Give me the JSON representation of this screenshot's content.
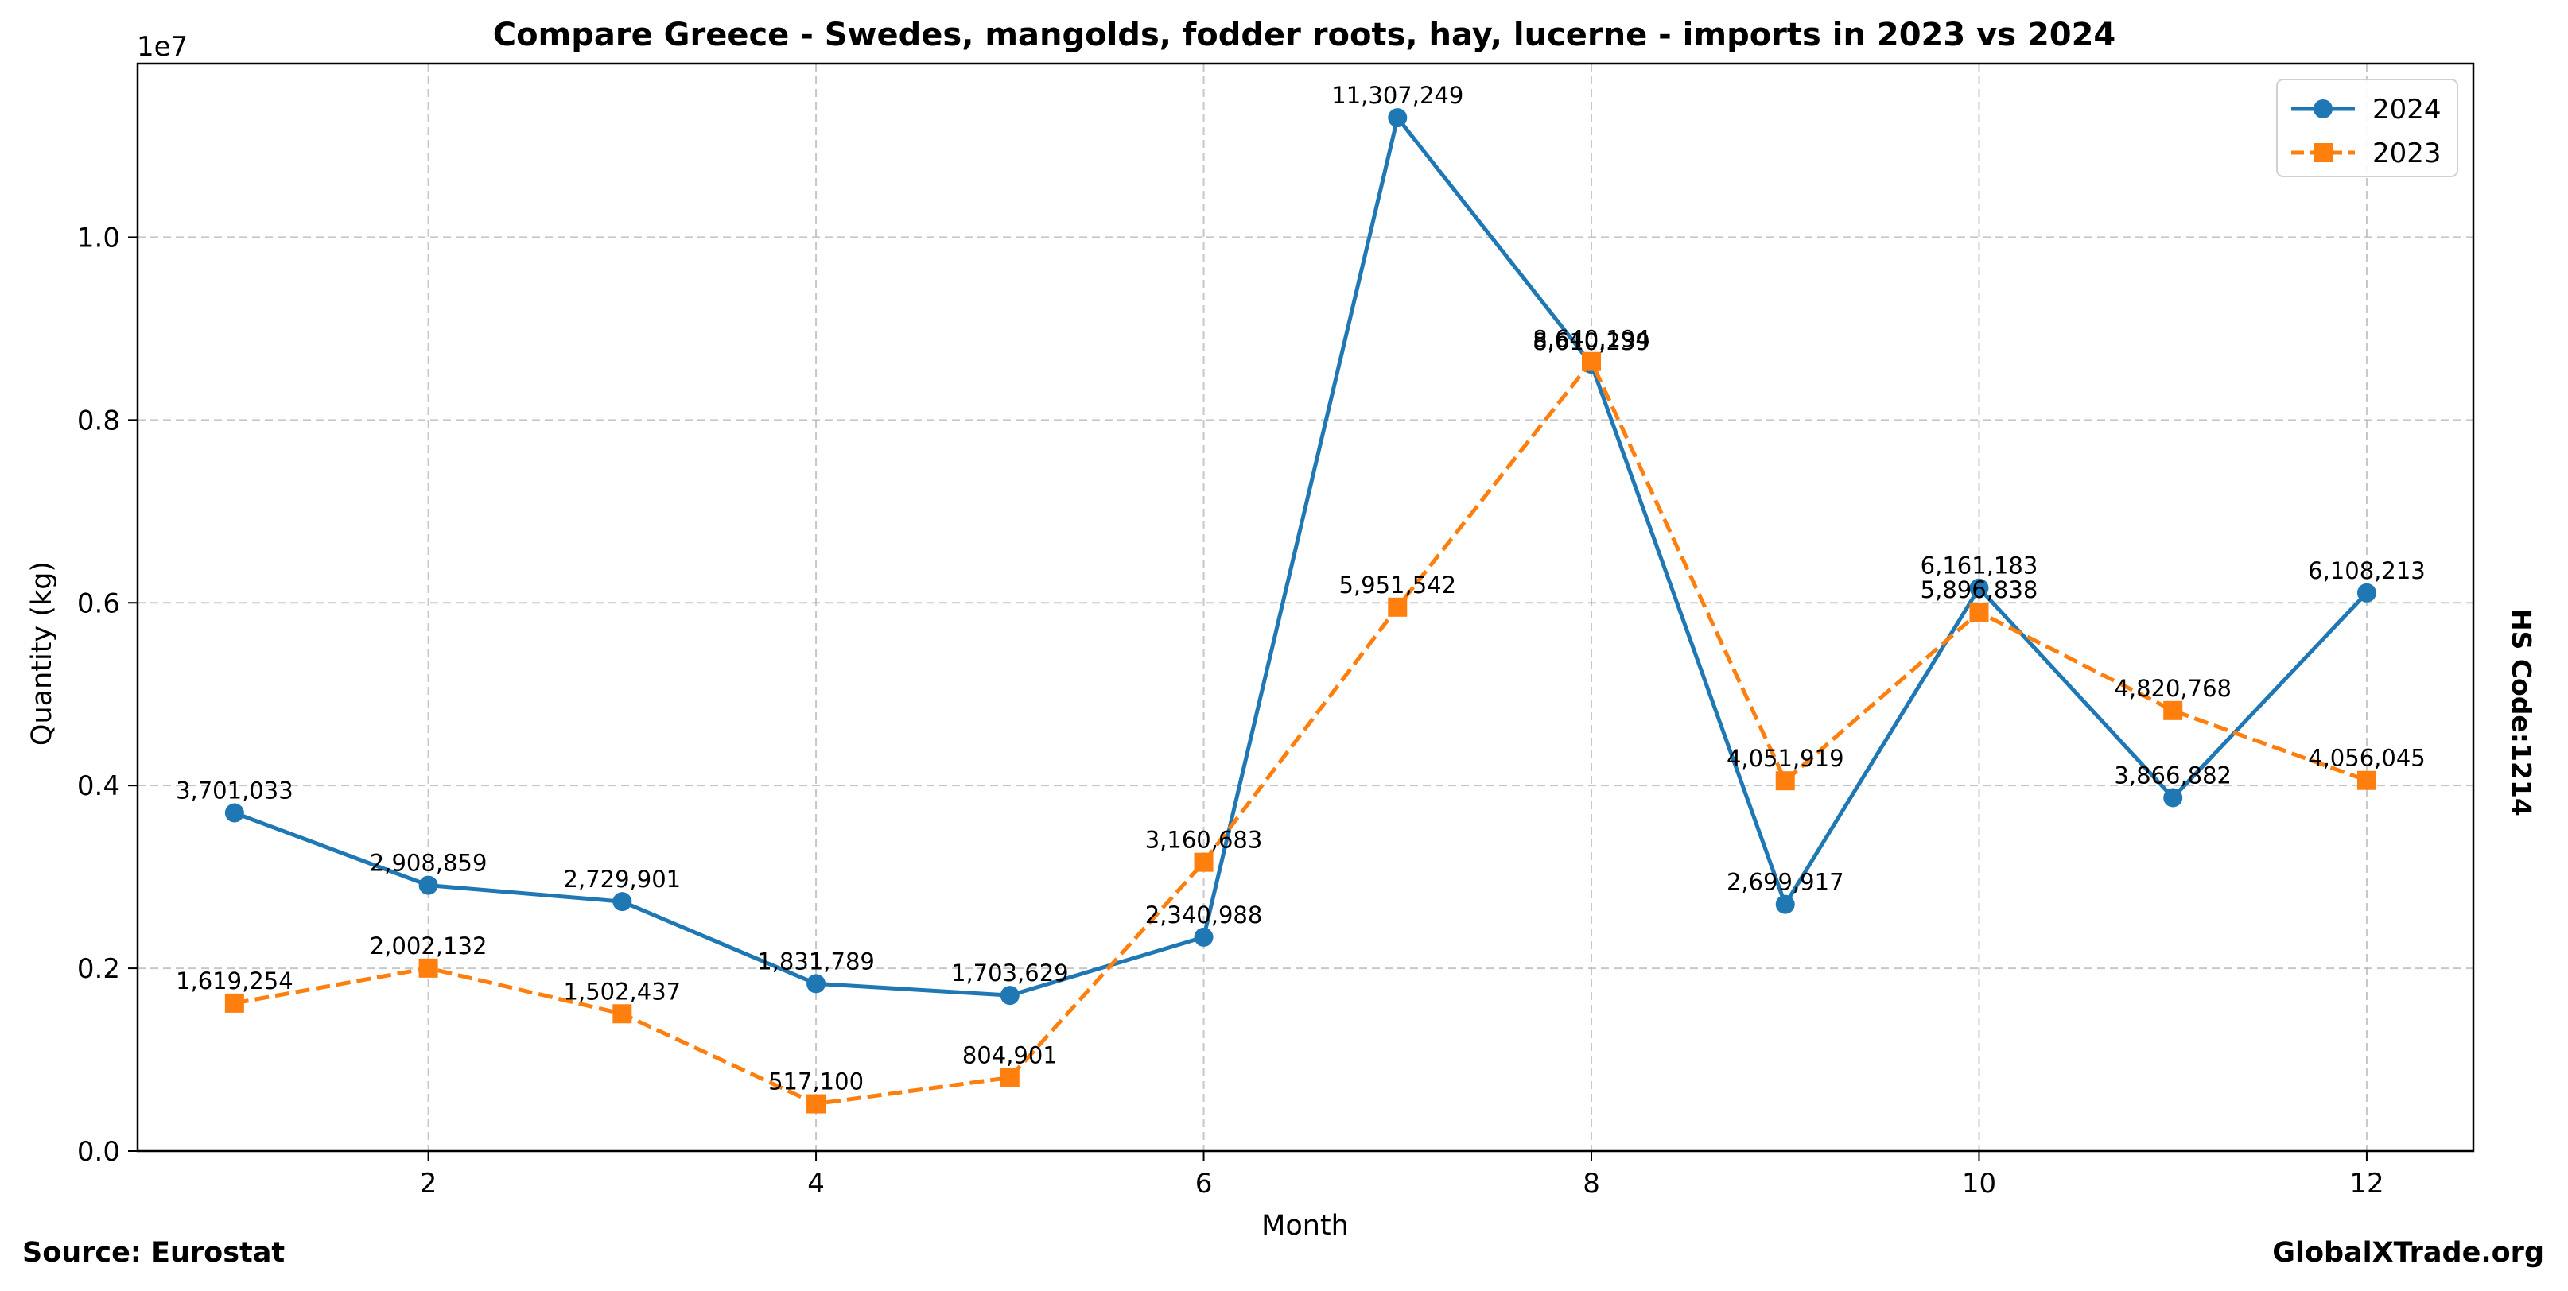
{
  "chart_data": {
    "type": "line",
    "title": "Compare Greece - Swedes, mangolds, fodder roots, hay, lucerne - imports in 2023 vs 2024",
    "xlabel": "Month",
    "ylabel": "Quantity (kg)",
    "y_scale_label": "1e7",
    "y_scale": 10000000,
    "xlim": [
      0.5,
      12.55
    ],
    "ylim": [
      0,
      11900000
    ],
    "x_ticks": [
      2,
      4,
      6,
      8,
      10,
      12
    ],
    "y_ticks": [
      0,
      2000000,
      4000000,
      6000000,
      8000000,
      10000000
    ],
    "y_tick_labels": [
      "0.0",
      "0.2",
      "0.4",
      "0.6",
      "0.8",
      "1.0"
    ],
    "grid": true,
    "legend_position": "top-right",
    "x": [
      1,
      2,
      3,
      4,
      5,
      6,
      7,
      8,
      9,
      10,
      11,
      12
    ],
    "series": [
      {
        "name": "2024",
        "color": "#1f77b4",
        "marker": "circle",
        "line_style": "solid",
        "values": [
          3701033,
          2908859,
          2729901,
          1831789,
          1703629,
          2340988,
          11307249,
          8610239,
          2699917,
          6161183,
          3866882,
          6108213
        ],
        "labels": [
          "3,701,033",
          "2,908,859",
          "2,729,901",
          "1,831,789",
          "1,703,629",
          "2,340,988",
          "11,307,249",
          "8,610,239",
          "2,699,917",
          "6,161,183",
          "3,866,882",
          "6,108,213"
        ]
      },
      {
        "name": "2023",
        "color": "#ff7f0e",
        "marker": "square",
        "line_style": "dashed",
        "values": [
          1619254,
          2002132,
          1502437,
          517100,
          804901,
          3160683,
          5951542,
          8640194,
          4051919,
          5896838,
          4820768,
          4056045
        ],
        "labels": [
          "1,619,254",
          "2,002,132",
          "1,502,437",
          "517,100",
          "804,901",
          "3,160,683",
          "5,951,542",
          "8,640,194",
          "4,051,919",
          "5,896,838",
          "4,820,768",
          "4,056,045"
        ]
      }
    ]
  },
  "footer": {
    "source": "Source: Eurostat",
    "brand": "GlobalXTrade.org",
    "hs_code": "HS Code:1214"
  }
}
